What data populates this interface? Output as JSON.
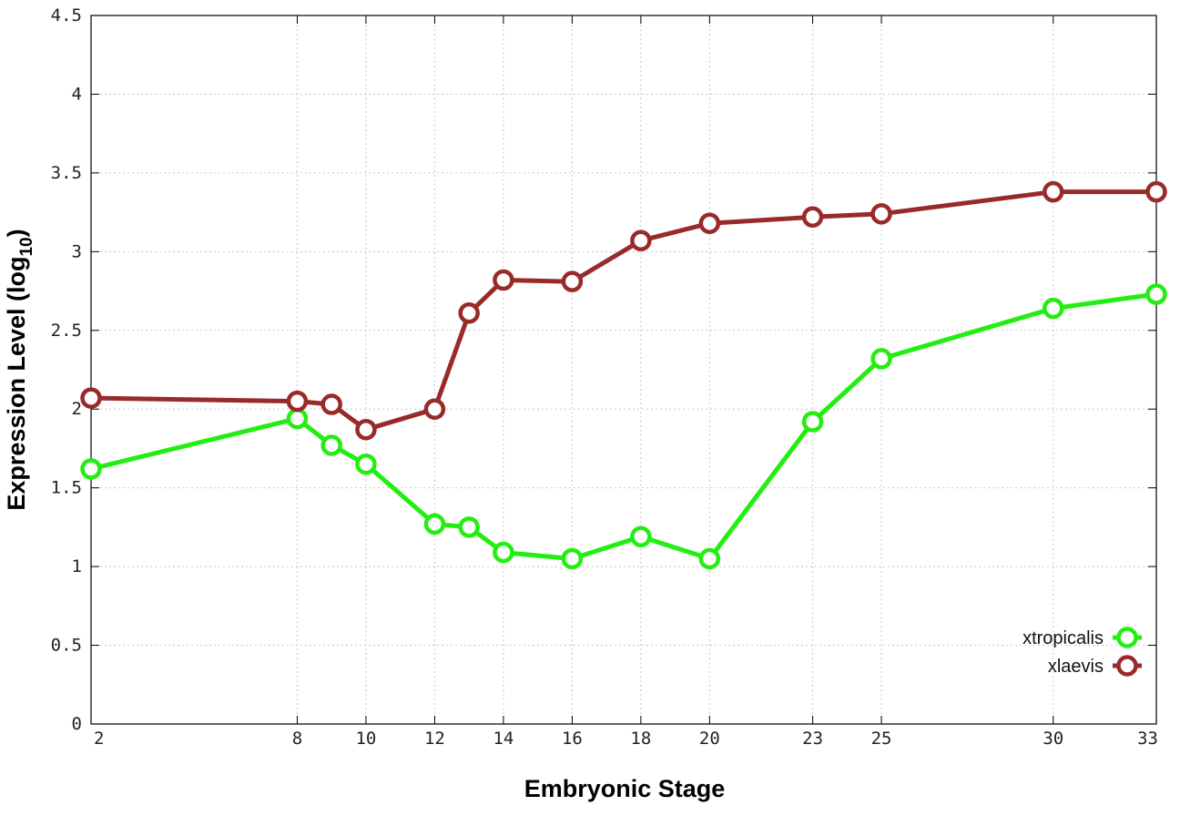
{
  "chart_data": {
    "type": "line",
    "title": "",
    "xlabel": "Embryonic Stage",
    "ylabel": "Expression Level (log",
    "ylabel_sub": "10",
    "ylabel_close": ")",
    "x": [
      2,
      8,
      9,
      10,
      12,
      13,
      14,
      16,
      18,
      20,
      23,
      25,
      30,
      33
    ],
    "x_tick_labels": [
      "2",
      "8",
      "10",
      "12",
      "14",
      "16",
      "18",
      "20",
      "23",
      "25",
      "30",
      "33"
    ],
    "x_tick_values": [
      2,
      8,
      10,
      12,
      14,
      16,
      18,
      20,
      23,
      25,
      30,
      33
    ],
    "xlim": [
      2,
      33
    ],
    "y_tick_labels": [
      "0",
      "0.5",
      "1",
      "1.5",
      "2",
      "2.5",
      "3",
      "3.5",
      "4",
      "4.5"
    ],
    "y_tick_values": [
      0,
      0.5,
      1,
      1.5,
      2,
      2.5,
      3,
      3.5,
      4,
      4.5
    ],
    "ylim": [
      0,
      4.5
    ],
    "grid": true,
    "legend_position": "bottom-right",
    "series": [
      {
        "name": "xtropicalis",
        "color": "#22ee11",
        "values": [
          1.62,
          1.94,
          1.77,
          1.65,
          1.27,
          1.25,
          1.09,
          1.05,
          1.19,
          1.05,
          1.92,
          2.32,
          2.64,
          2.73
        ]
      },
      {
        "name": "xlaevis",
        "color": "#992a2a",
        "values": [
          2.07,
          2.05,
          2.03,
          1.87,
          2.0,
          2.61,
          2.82,
          2.81,
          3.07,
          3.18,
          3.22,
          3.24,
          3.38,
          3.38
        ]
      }
    ]
  }
}
